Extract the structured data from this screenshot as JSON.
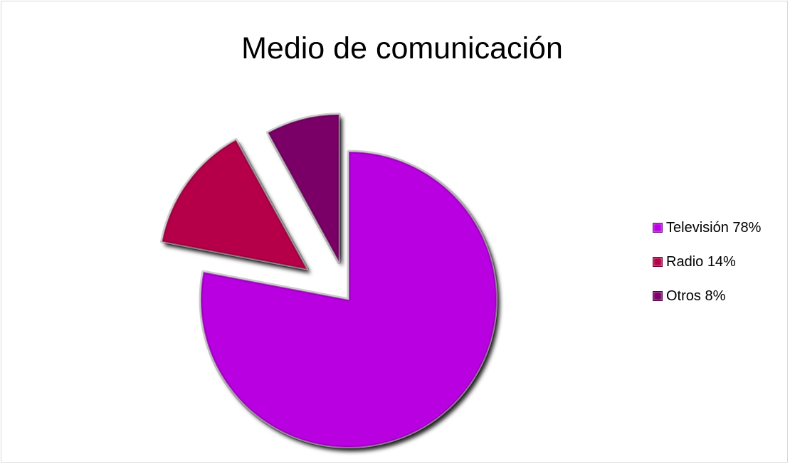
{
  "chart_data": {
    "type": "pie",
    "title": "Medio de comunicación",
    "series": [
      {
        "values": [
          78,
          14,
          8
        ]
      }
    ],
    "categories": [
      "Televisión 78%",
      "Radio 14%",
      "Otros 8%"
    ],
    "values": [
      78,
      14,
      8
    ],
    "exploded": true,
    "legend_position": "right",
    "colors": [
      "#b900e0",
      "#b5004a",
      "#7a0068"
    ]
  }
}
